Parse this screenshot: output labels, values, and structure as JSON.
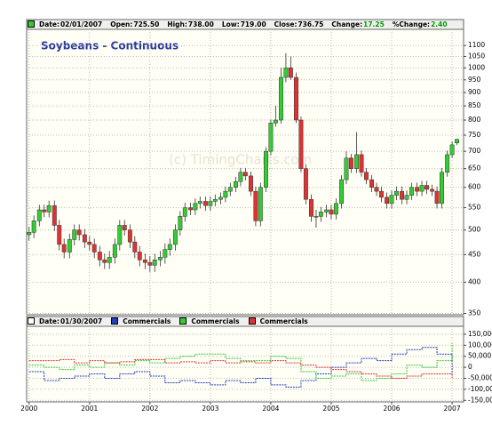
{
  "chart_data": [
    {
      "type": "candlestick",
      "title": "Soybeans - Continuous",
      "watermark": "(c) TimingCharts.com",
      "header": [
        {
          "label": "Date:",
          "value": "02/01/2007"
        },
        {
          "label": "Open:",
          "value": "725.50"
        },
        {
          "label": "High:",
          "value": "738.00"
        },
        {
          "label": "Low:",
          "value": "719.00"
        },
        {
          "label": "Close:",
          "value": "736.75"
        },
        {
          "label": "Change:",
          "value": "17.25",
          "value_color": "#009900"
        },
        {
          "label": "%Change:",
          "value": "2.40",
          "value_color": "#009900"
        }
      ],
      "header_marker_color": "#33cc33",
      "up_color": "#33cc33",
      "down_color": "#dd3333",
      "log_scale": true,
      "grid": true,
      "x": [
        2000.0,
        2000.08,
        2000.17,
        2000.25,
        2000.33,
        2000.42,
        2000.5,
        2000.58,
        2000.67,
        2000.75,
        2000.83,
        2000.92,
        2001.0,
        2001.08,
        2001.17,
        2001.25,
        2001.33,
        2001.42,
        2001.5,
        2001.58,
        2001.67,
        2001.75,
        2001.83,
        2001.92,
        2002.0,
        2002.08,
        2002.17,
        2002.25,
        2002.33,
        2002.42,
        2002.5,
        2002.58,
        2002.67,
        2002.75,
        2002.83,
        2002.92,
        2003.0,
        2003.08,
        2003.17,
        2003.25,
        2003.33,
        2003.42,
        2003.5,
        2003.58,
        2003.67,
        2003.75,
        2003.83,
        2003.92,
        2004.0,
        2004.08,
        2004.17,
        2004.25,
        2004.33,
        2004.42,
        2004.5,
        2004.58,
        2004.67,
        2004.75,
        2004.83,
        2004.92,
        2005.0,
        2005.08,
        2005.17,
        2005.25,
        2005.33,
        2005.42,
        2005.5,
        2005.58,
        2005.67,
        2005.75,
        2005.83,
        2005.92,
        2006.0,
        2006.08,
        2006.17,
        2006.25,
        2006.33,
        2006.42,
        2006.5,
        2006.58,
        2006.67,
        2006.75,
        2006.83,
        2006.92,
        2007.0,
        2007.08
      ],
      "open": [
        490,
        495,
        520,
        545,
        540,
        555,
        510,
        470,
        455,
        480,
        500,
        490,
        475,
        470,
        455,
        440,
        435,
        445,
        470,
        510,
        500,
        475,
        455,
        440,
        435,
        430,
        440,
        445,
        460,
        470,
        500,
        530,
        550,
        545,
        560,
        565,
        555,
        565,
        570,
        575,
        590,
        600,
        615,
        640,
        630,
        590,
        520,
        600,
        700,
        790,
        800,
        960,
        1000,
        960,
        800,
        650,
        570,
        530,
        530,
        540,
        545,
        535,
        560,
        620,
        680,
        650,
        690,
        640,
        620,
        600,
        590,
        575,
        560,
        580,
        590,
        570,
        580,
        600,
        590,
        605,
        595,
        590,
        560,
        640,
        690,
        725.5
      ],
      "high": [
        507,
        532,
        557,
        557,
        567,
        567,
        522,
        482,
        492,
        512,
        512,
        502,
        487,
        482,
        467,
        452,
        457,
        482,
        522,
        522,
        512,
        487,
        467,
        452,
        447,
        452,
        457,
        472,
        482,
        512,
        542,
        562,
        562,
        572,
        577,
        577,
        577,
        582,
        587,
        602,
        612,
        627,
        652,
        652,
        642,
        602,
        612,
        712,
        802,
        850,
        1000,
        1065,
        1050,
        980,
        812,
        662,
        582,
        545,
        552,
        557,
        557,
        572,
        632,
        700,
        692,
        760,
        702,
        652,
        632,
        612,
        602,
        587,
        592,
        602,
        602,
        592,
        612,
        612,
        617,
        617,
        607,
        602,
        652,
        702,
        730,
        738
      ],
      "low": [
        478,
        483,
        508,
        528,
        528,
        498,
        458,
        443,
        443,
        468,
        478,
        463,
        458,
        443,
        428,
        423,
        423,
        433,
        458,
        488,
        463,
        443,
        428,
        423,
        418,
        418,
        428,
        433,
        448,
        458,
        488,
        518,
        533,
        533,
        548,
        543,
        543,
        553,
        558,
        563,
        578,
        588,
        603,
        618,
        578,
        508,
        508,
        588,
        688,
        778,
        788,
        940,
        950,
        790,
        640,
        558,
        518,
        505,
        518,
        528,
        523,
        523,
        548,
        608,
        638,
        638,
        628,
        608,
        588,
        578,
        563,
        548,
        548,
        568,
        558,
        558,
        568,
        578,
        578,
        583,
        578,
        548,
        548,
        628,
        680,
        719
      ],
      "close": [
        495,
        520,
        545,
        540,
        555,
        510,
        470,
        455,
        480,
        500,
        490,
        475,
        470,
        455,
        440,
        435,
        445,
        470,
        510,
        500,
        475,
        455,
        440,
        435,
        430,
        440,
        445,
        460,
        470,
        500,
        530,
        550,
        545,
        560,
        565,
        555,
        565,
        570,
        575,
        590,
        600,
        615,
        640,
        630,
        590,
        520,
        600,
        700,
        790,
        800,
        960,
        1000,
        960,
        800,
        650,
        570,
        530,
        530,
        540,
        545,
        535,
        560,
        620,
        680,
        650,
        690,
        640,
        620,
        600,
        590,
        575,
        560,
        580,
        590,
        570,
        580,
        600,
        590,
        605,
        595,
        590,
        560,
        640,
        690,
        719.5,
        736.75
      ],
      "xlim": [
        1999.96,
        2007.19
      ],
      "xticks": [
        2000,
        2001,
        2002,
        2003,
        2004,
        2005,
        2006,
        2007
      ],
      "ylim": [
        348,
        1179
      ],
      "yticks": [
        350,
        400,
        450,
        500,
        550,
        600,
        650,
        700,
        750,
        800,
        850,
        900,
        950,
        1000,
        1050,
        1100
      ]
    },
    {
      "type": "line",
      "header": [
        {
          "label": "Date:",
          "value": "01/30/2007"
        }
      ],
      "x": [
        2000.0,
        2000.25,
        2000.5,
        2000.75,
        2001.0,
        2001.25,
        2001.5,
        2001.75,
        2002.0,
        2002.25,
        2002.5,
        2002.75,
        2003.0,
        2003.25,
        2003.5,
        2003.75,
        2004.0,
        2004.25,
        2004.5,
        2004.75,
        2005.0,
        2005.25,
        2005.5,
        2005.75,
        2006.0,
        2006.25,
        2006.5,
        2006.75,
        2007.0
      ],
      "series": [
        {
          "name": "Commercials",
          "color": "#1f3fbf",
          "values": [
            -20000,
            -60000,
            -50000,
            -40000,
            -30000,
            -50000,
            -30000,
            -20000,
            -40000,
            -70000,
            -60000,
            -70000,
            -80000,
            -60000,
            -70000,
            -50000,
            -80000,
            -90000,
            -60000,
            -30000,
            0,
            20000,
            40000,
            30000,
            60000,
            80000,
            90000,
            60000,
            -40000
          ]
        },
        {
          "name": "Commercials",
          "color": "#33cc33",
          "values": [
            10000,
            0,
            -10000,
            10000,
            0,
            20000,
            10000,
            30000,
            20000,
            40000,
            50000,
            60000,
            60000,
            40000,
            30000,
            30000,
            50000,
            40000,
            -20000,
            -50000,
            -40000,
            -30000,
            -60000,
            -50000,
            -30000,
            10000,
            0,
            30000,
            110000
          ]
        },
        {
          "name": "Commercials",
          "color": "#dd3333",
          "values": [
            30000,
            30000,
            35000,
            20000,
            30000,
            20000,
            25000,
            35000,
            35000,
            20000,
            25000,
            20000,
            30000,
            20000,
            25000,
            20000,
            30000,
            20000,
            10000,
            0,
            -10000,
            -20000,
            -30000,
            -40000,
            -50000,
            -40000,
            -30000,
            -30000,
            -50000
          ]
        }
      ],
      "grid": true,
      "xlim": [
        1999.96,
        2007.19
      ],
      "xticks": [
        2000,
        2001,
        2002,
        2003,
        2004,
        2005,
        2006,
        2007
      ],
      "ylim": [
        -157000,
        186000
      ],
      "yticks": [
        {
          "value": 150000,
          "label": "150,000"
        },
        {
          "value": 100000,
          "label": "100,000"
        },
        {
          "value": 50000,
          "label": "50,000"
        },
        0,
        {
          "value": -50000,
          "label": "-50,000"
        },
        {
          "value": -100000,
          "label": "-100,000"
        },
        {
          "value": -150000,
          "label": "-150,000"
        }
      ]
    }
  ]
}
